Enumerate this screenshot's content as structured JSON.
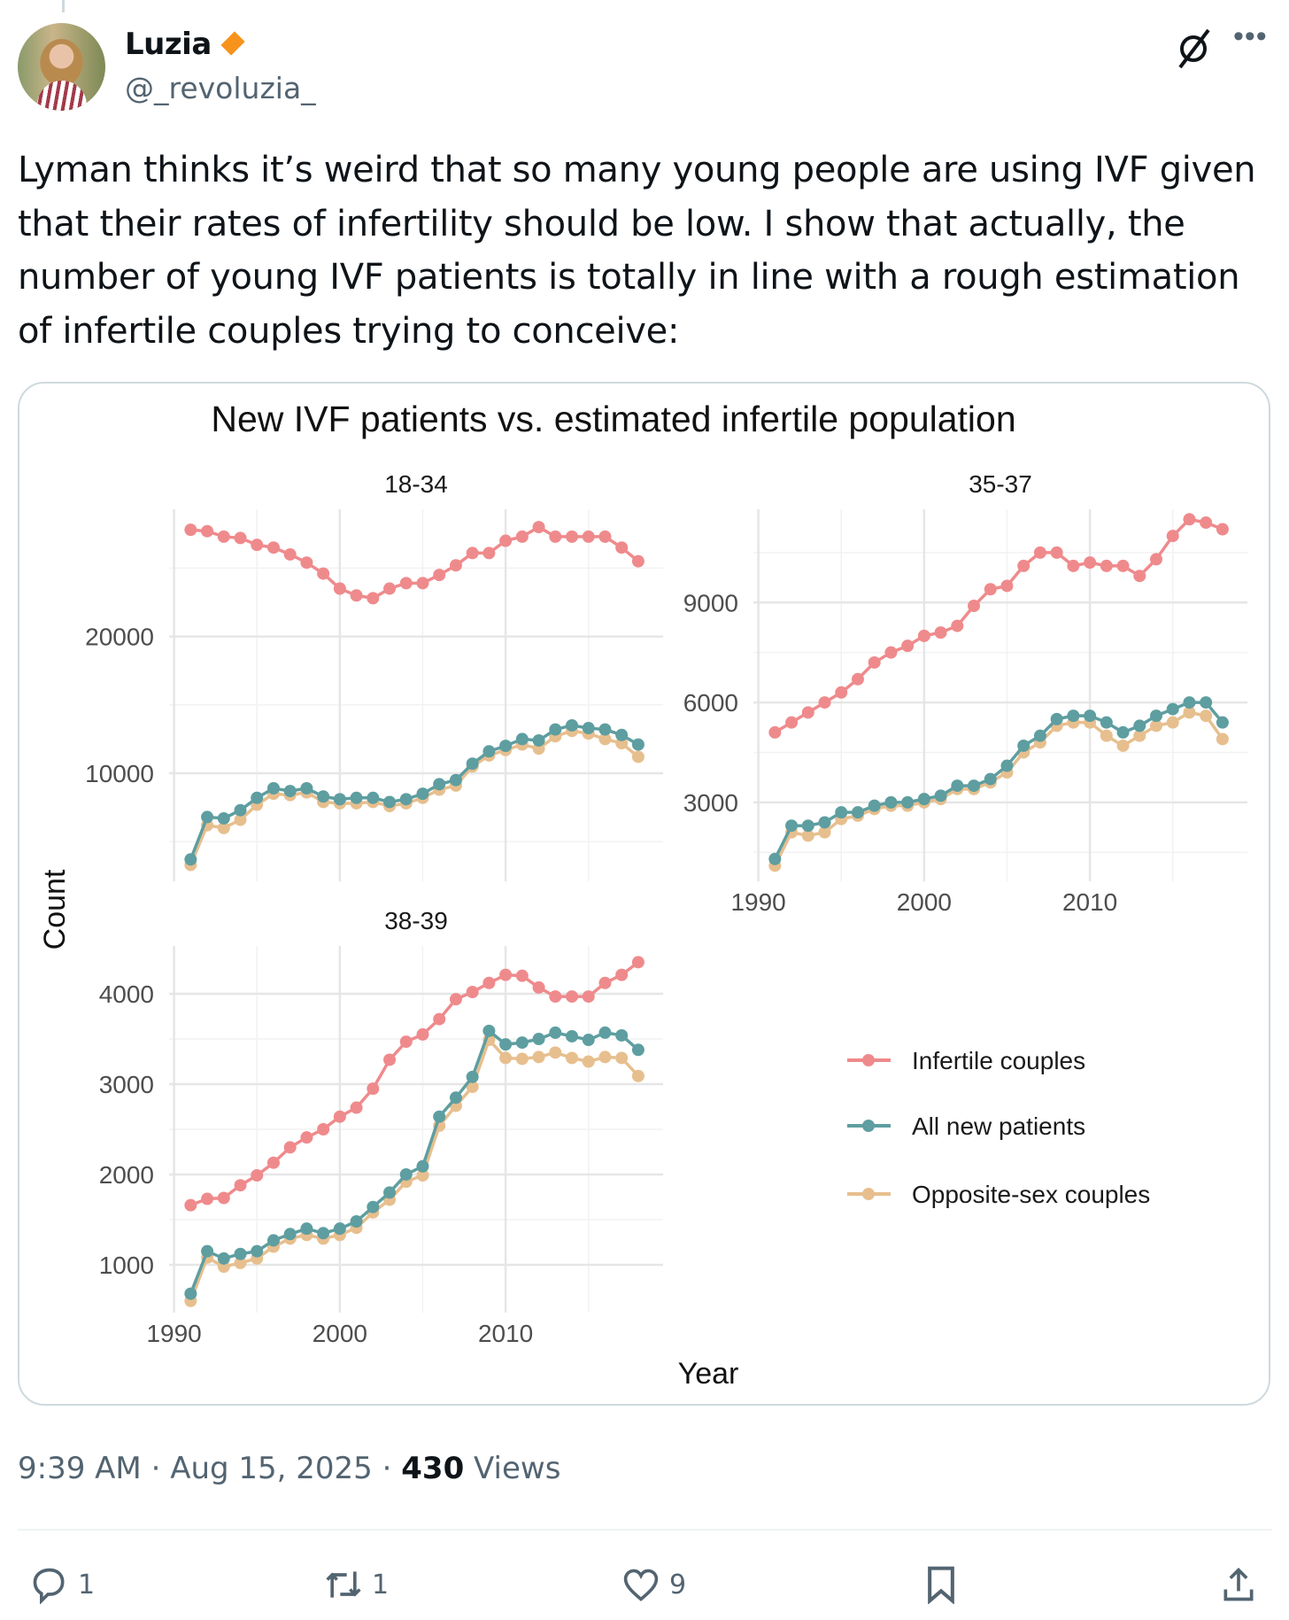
{
  "author": {
    "name": "Luzia",
    "handle": "@_revoluzia_"
  },
  "header_icons": {
    "grok": "grok-icon",
    "more": "more-icon"
  },
  "post": {
    "text": "Lyman thinks it’s weird that so many young people are using IVF given that their rates of infertility should be low. I show that actually, the number of young IVF patients is totally in line with a rough estimation of infertile couples trying to conceive:",
    "time": "9:39 AM",
    "sep": "·",
    "date": "Aug 15, 2025",
    "views_count": "430",
    "views_label": "Views"
  },
  "actions": {
    "replies": "1",
    "reposts": "1",
    "likes": "9"
  },
  "chart_data": {
    "type": "line",
    "title": "New IVF patients vs. estimated infertile population",
    "xlabel": "Year",
    "ylabel": "Count",
    "grid": true,
    "legend_position": "bottom-right",
    "x": [
      1991,
      1992,
      1993,
      1994,
      1995,
      1996,
      1997,
      1998,
      1999,
      2000,
      2001,
      2002,
      2003,
      2004,
      2005,
      2006,
      2007,
      2008,
      2009,
      2010,
      2011,
      2012,
      2013,
      2014,
      2015,
      2016,
      2017,
      2018
    ],
    "x_ticks": [
      1990,
      2000,
      2010
    ],
    "xlim": [
      1989.7,
      2019.5
    ],
    "series_names": [
      "Infertile couples",
      "All new patients",
      "Opposite-sex couples"
    ],
    "colors": [
      "#EF8A8C",
      "#5E9EA0",
      "#E7BF8E"
    ],
    "panels": [
      {
        "label": "18-34",
        "ylim": [
          2100,
          29300
        ],
        "y_ticks": [
          10000,
          20000
        ],
        "y_minor": [
          5000,
          15000,
          25000
        ],
        "show_x_labels": false,
        "series": [
          [
            27800,
            27700,
            27300,
            27200,
            26700,
            26500,
            26000,
            25400,
            24600,
            23500,
            23000,
            22800,
            23500,
            23900,
            23900,
            24500,
            25200,
            26100,
            26100,
            27000,
            27300,
            28000,
            27300,
            27300,
            27300,
            27300,
            26500,
            25500
          ],
          [
            3700,
            6800,
            6700,
            7300,
            8200,
            8900,
            8700,
            8900,
            8300,
            8100,
            8200,
            8200,
            7900,
            8100,
            8500,
            9200,
            9500,
            10700,
            11600,
            12000,
            12500,
            12400,
            13200,
            13500,
            13300,
            13200,
            12800,
            12100
          ],
          [
            3300,
            6200,
            6000,
            6600,
            7700,
            8500,
            8400,
            8600,
            7900,
            7800,
            7800,
            7900,
            7600,
            7800,
            8200,
            8800,
            9100,
            10500,
            11300,
            11700,
            12100,
            11800,
            12700,
            13100,
            12900,
            12500,
            12200,
            11200
          ]
        ]
      },
      {
        "label": "35-37",
        "ylim": [
          630,
          11800
        ],
        "y_ticks": [
          3000,
          6000,
          9000
        ],
        "y_minor": [
          1500,
          4500,
          7500,
          10500
        ],
        "show_x_labels": true,
        "series": [
          [
            5100,
            5400,
            5700,
            6000,
            6300,
            6700,
            7200,
            7500,
            7700,
            8000,
            8100,
            8300,
            8900,
            9400,
            9500,
            10100,
            10500,
            10500,
            10100,
            10200,
            10100,
            10100,
            9800,
            10300,
            11000,
            11500,
            11400,
            11200
          ],
          [
            1300,
            2300,
            2300,
            2400,
            2700,
            2700,
            2900,
            3000,
            3000,
            3100,
            3200,
            3500,
            3500,
            3700,
            4100,
            4700,
            5000,
            5500,
            5600,
            5600,
            5400,
            5100,
            5300,
            5600,
            5800,
            6000,
            6000,
            5400
          ],
          [
            1100,
            2100,
            2000,
            2100,
            2500,
            2600,
            2800,
            2900,
            2900,
            3000,
            3100,
            3400,
            3400,
            3600,
            3900,
            4500,
            4800,
            5300,
            5400,
            5400,
            5000,
            4700,
            5000,
            5300,
            5400,
            5700,
            5600,
            4900
          ]
        ]
      },
      {
        "label": "38-39",
        "ylim": [
          470,
          4530
        ],
        "y_ticks": [
          1000,
          2000,
          3000,
          4000
        ],
        "y_minor": [
          1500,
          2500,
          3500
        ],
        "show_x_labels": true,
        "series": [
          [
            1660,
            1730,
            1740,
            1880,
            1990,
            2130,
            2300,
            2410,
            2500,
            2640,
            2740,
            2950,
            3270,
            3470,
            3550,
            3720,
            3940,
            4020,
            4120,
            4210,
            4200,
            4070,
            3970,
            3970,
            3970,
            4120,
            4210,
            4350
          ],
          [
            680,
            1150,
            1070,
            1120,
            1150,
            1270,
            1340,
            1400,
            1350,
            1400,
            1480,
            1640,
            1800,
            2000,
            2090,
            2640,
            2850,
            3080,
            3590,
            3440,
            3460,
            3500,
            3570,
            3530,
            3490,
            3570,
            3540,
            3380
          ],
          [
            600,
            1080,
            980,
            1020,
            1070,
            1200,
            1290,
            1330,
            1290,
            1330,
            1410,
            1580,
            1720,
            1920,
            1990,
            2540,
            2760,
            2970,
            3490,
            3290,
            3280,
            3300,
            3350,
            3290,
            3250,
            3300,
            3290,
            3090
          ]
        ]
      }
    ]
  }
}
